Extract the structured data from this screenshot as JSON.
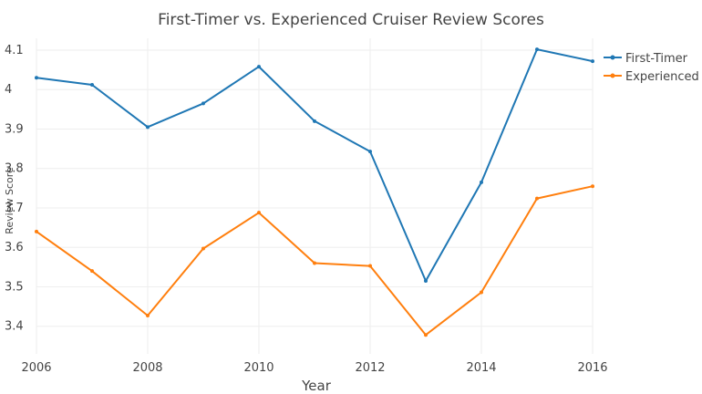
{
  "chart_data": {
    "type": "line",
    "title": "First-Timer vs. Experienced Cruiser Review Scores",
    "xlabel": "Year",
    "ylabel": "Review Score",
    "x": [
      2006,
      2007,
      2008,
      2009,
      2010,
      2011,
      2012,
      2013,
      2014,
      2015,
      2016
    ],
    "xlim": [
      2006,
      2016
    ],
    "ylim": [
      3.33,
      4.13
    ],
    "xticks": [
      2006,
      2008,
      2010,
      2012,
      2014,
      2016
    ],
    "yticks": [
      3.4,
      3.5,
      3.6,
      3.7,
      3.8,
      3.9,
      4,
      4.1
    ],
    "xtick_labels": [
      "2006",
      "2008",
      "2010",
      "2012",
      "2014",
      "2016"
    ],
    "ytick_labels": [
      "3.4",
      "3.5",
      "3.6",
      "3.7",
      "3.8",
      "3.9",
      "4",
      "4.1"
    ],
    "grid": true,
    "legend_position": "top-right",
    "series": [
      {
        "name": "First-Timer",
        "color": "#1f77b4",
        "values": [
          4.03,
          4.012,
          3.905,
          3.965,
          4.058,
          3.92,
          3.843,
          3.515,
          3.765,
          4.102,
          4.072
        ]
      },
      {
        "name": "Experienced",
        "color": "#ff7f0e",
        "values": [
          3.64,
          3.54,
          3.427,
          3.597,
          3.688,
          3.56,
          3.553,
          3.378,
          3.486,
          3.724,
          3.755
        ]
      }
    ]
  }
}
